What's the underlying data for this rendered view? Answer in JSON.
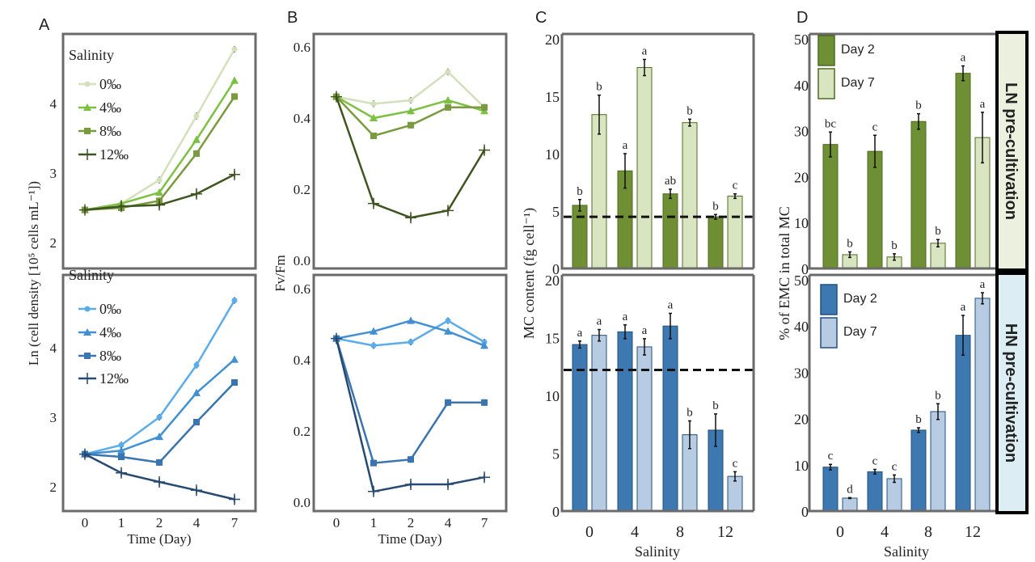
{
  "panel_letters": [
    "A",
    "B",
    "C",
    "D"
  ],
  "strips": [
    "LN pre-cultivation",
    "HN pre-cultivation"
  ],
  "colors": {
    "ln_day2": "#6f8f35",
    "ln_day7": "#d8e5c0",
    "hn_day2": "#3d79b0",
    "hn_day7": "#b7cbe3",
    "ln_strip": "#ecf0df",
    "hn_strip": "#dcedf3"
  },
  "chart_data": [
    {
      "id": "A",
      "type": "line",
      "ylabel": "Ln (cell density [10⁵ cells mL⁻¹])",
      "xlabel": "Time (Day)",
      "x": [
        "0",
        "1",
        "2",
        "4",
        "7"
      ],
      "yticks": [
        2,
        3,
        4
      ],
      "legend_title": "Salinity",
      "rows": [
        {
          "condition": "LN",
          "series": [
            {
              "name": "0‰",
              "marker": "circle",
              "color": "#d3e0bb",
              "values": [
                2.47,
                2.56,
                2.9,
                3.82,
                4.78
              ]
            },
            {
              "name": "4‰",
              "marker": "triangle",
              "color": "#7cc142",
              "values": [
                2.47,
                2.56,
                2.72,
                3.48,
                4.33
              ]
            },
            {
              "name": "8‰",
              "marker": "square",
              "color": "#7a9a3f",
              "values": [
                2.47,
                2.5,
                2.6,
                3.28,
                4.1
              ]
            },
            {
              "name": "12‰",
              "marker": "plus",
              "color": "#3f5520",
              "values": [
                2.47,
                2.52,
                2.54,
                2.7,
                2.98
              ]
            }
          ]
        },
        {
          "condition": "HN",
          "series": [
            {
              "name": "0‰",
              "marker": "circle",
              "color": "#5aaceb",
              "values": [
                2.47,
                2.6,
                3.0,
                3.75,
                4.68
              ]
            },
            {
              "name": "4‰",
              "marker": "triangle",
              "color": "#4290d2",
              "values": [
                2.47,
                2.52,
                2.72,
                3.35,
                3.83
              ]
            },
            {
              "name": "8‰",
              "marker": "square",
              "color": "#3a75b0",
              "values": [
                2.47,
                2.43,
                2.35,
                2.93,
                3.5
              ]
            },
            {
              "name": "12‰",
              "marker": "plus",
              "color": "#264a72",
              "values": [
                2.47,
                2.2,
                2.07,
                1.95,
                1.82
              ]
            }
          ]
        }
      ]
    },
    {
      "id": "B",
      "type": "line",
      "ylabel": "Fv/Fm",
      "xlabel": "Time (Day)",
      "x": [
        "0",
        "1",
        "2",
        "4",
        "7"
      ],
      "yticks": [
        "0.0",
        "0.2",
        "0.4",
        "0.6"
      ],
      "rows": [
        {
          "condition": "LN",
          "series": [
            {
              "name": "0‰",
              "marker": "circle",
              "color": "#d3e0bb",
              "values": [
                0.46,
                0.44,
                0.45,
                0.53,
                0.43
              ]
            },
            {
              "name": "4‰",
              "marker": "triangle",
              "color": "#7cc142",
              "values": [
                0.46,
                0.4,
                0.42,
                0.45,
                0.42
              ]
            },
            {
              "name": "8‰",
              "marker": "square",
              "color": "#7a9a3f",
              "values": [
                0.46,
                0.35,
                0.38,
                0.43,
                0.43
              ]
            },
            {
              "name": "12‰",
              "marker": "plus",
              "color": "#3f5520",
              "values": [
                0.46,
                0.16,
                0.12,
                0.14,
                0.31
              ]
            }
          ]
        },
        {
          "condition": "HN",
          "series": [
            {
              "name": "0‰",
              "marker": "circle",
              "color": "#5aaceb",
              "values": [
                0.46,
                0.44,
                0.45,
                0.51,
                0.45
              ]
            },
            {
              "name": "4‰",
              "marker": "triangle",
              "color": "#4290d2",
              "values": [
                0.46,
                0.48,
                0.51,
                0.48,
                0.44
              ]
            },
            {
              "name": "8‰",
              "marker": "square",
              "color": "#3a75b0",
              "values": [
                0.46,
                0.11,
                0.12,
                0.28,
                0.28
              ]
            },
            {
              "name": "12‰",
              "marker": "plus",
              "color": "#264a72",
              "values": [
                0.46,
                0.03,
                0.05,
                0.05,
                0.07
              ]
            }
          ]
        }
      ]
    },
    {
      "id": "C",
      "type": "bar",
      "ylabel": "MC content (fg cell⁻¹)",
      "xlabel": "Salinity",
      "categories": [
        "0",
        "4",
        "8",
        "12"
      ],
      "yticks": [
        0,
        5,
        10,
        15,
        20
      ],
      "rows": [
        {
          "condition": "LN",
          "reference_line": 4.5,
          "day2": {
            "values": [
              5.5,
              8.5,
              6.5,
              4.5
            ],
            "errors": [
              0.5,
              1.5,
              0.4,
              0.2
            ],
            "letters": [
              "b",
              "a",
              "ab",
              "b"
            ]
          },
          "day7": {
            "values": [
              13.4,
              17.5,
              12.7,
              6.3
            ],
            "errors": [
              1.7,
              0.7,
              0.3,
              0.2
            ],
            "letters": [
              "b",
              "a",
              "b",
              "c"
            ]
          }
        },
        {
          "condition": "HN",
          "reference_line": 12.2,
          "day2": {
            "values": [
              14.4,
              15.5,
              16.0,
              7.0
            ],
            "errors": [
              0.3,
              0.6,
              1.1,
              1.4
            ],
            "letters": [
              "a",
              "a",
              "a",
              "b"
            ]
          },
          "day7": {
            "values": [
              15.2,
              14.2,
              6.6,
              3.0
            ],
            "errors": [
              0.5,
              0.7,
              1.2,
              0.4
            ],
            "letters": [
              "a",
              "a",
              "b",
              "c"
            ]
          }
        }
      ]
    },
    {
      "id": "D",
      "type": "bar",
      "ylabel": "% of EMC in total MC",
      "xlabel": "Salinity",
      "categories": [
        "0",
        "4",
        "8",
        "12"
      ],
      "yticks": [
        0,
        10,
        20,
        30,
        40,
        50
      ],
      "legend": [
        "Day 2",
        "Day 7"
      ],
      "rows": [
        {
          "condition": "LN",
          "day2": {
            "values": [
              27,
              25.5,
              32,
              42.5
            ],
            "errors": [
              2.7,
              3.5,
              1.7,
              1.6
            ],
            "letters": [
              "bc",
              "c",
              "b",
              "a"
            ]
          },
          "day7": {
            "values": [
              3,
              2.5,
              5.5,
              28.5
            ],
            "errors": [
              0.6,
              0.7,
              0.8,
              5.5
            ],
            "letters": [
              "b",
              "b",
              "b",
              "a"
            ]
          }
        },
        {
          "condition": "HN",
          "day2": {
            "values": [
              9.5,
              8.5,
              17.5,
              38
            ],
            "errors": [
              0.6,
              0.5,
              0.5,
              4.3
            ],
            "letters": [
              "c",
              "c",
              "b",
              "a"
            ]
          },
          "day7": {
            "values": [
              2.8,
              7,
              21.5,
              46
            ],
            "errors": [
              0.1,
              0.8,
              1.7,
              1.2
            ],
            "letters": [
              "d",
              "c",
              "b",
              "a"
            ]
          }
        }
      ]
    }
  ]
}
